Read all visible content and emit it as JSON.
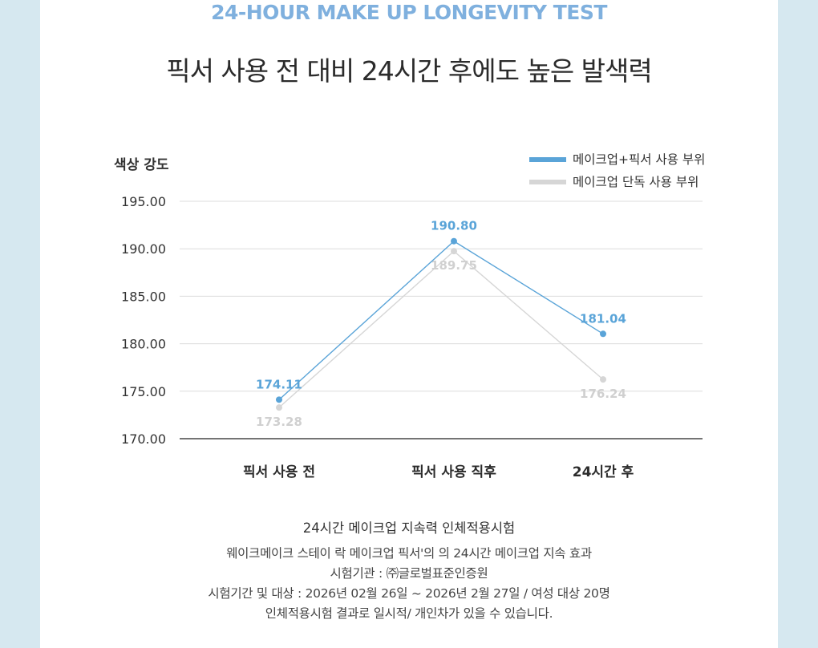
{
  "header": {
    "eyebrow": "24-HOUR MAKE UP LONGEVITY TEST",
    "headline": "픽서 사용 전 대비 24시간 후에도 높은 발색력"
  },
  "colors": {
    "accent": "#5aa4d8",
    "secondary": "#d6d6d6",
    "secondary_label": "#d0d0d0",
    "background": "#d6e8f0"
  },
  "chart_data": {
    "type": "line",
    "ylabel": "색상 강도",
    "ylim": [
      170,
      195
    ],
    "yticks": [
      "195.00",
      "190.00",
      "185.00",
      "180.00",
      "175.00",
      "170.00"
    ],
    "categories": [
      "픽서 사용 전",
      "픽서 사용 직후",
      "24시간 후"
    ],
    "legend_position": "top-right",
    "grid": true,
    "series": [
      {
        "name": "메이크업+픽서 사용 부위",
        "values": [
          174.11,
          190.8,
          181.04
        ],
        "labels": [
          "174.11",
          "190.80",
          "181.04"
        ],
        "label_position": "above"
      },
      {
        "name": "메이크업 단독 사용 부위",
        "values": [
          173.28,
          189.75,
          176.24
        ],
        "labels": [
          "173.28",
          "189.75",
          "176.24"
        ],
        "label_position": "below"
      }
    ]
  },
  "footer": {
    "title": "24시간 메이크업 지속력 인체적용시험",
    "lines": [
      "웨이크메이크 스테이 락 메이크업 픽서'의 의 24시간 메이크업 지속 효과",
      "시험기관 : ㈜글로벌표준인증원",
      "시험기간 및 대상 : 2026년 02월 26일 ~ 2026년 2월 27일 / 여성 대상 20명",
      "인체적용시험 결과로 일시적/ 개인차가 있을 수 있습니다."
    ]
  }
}
